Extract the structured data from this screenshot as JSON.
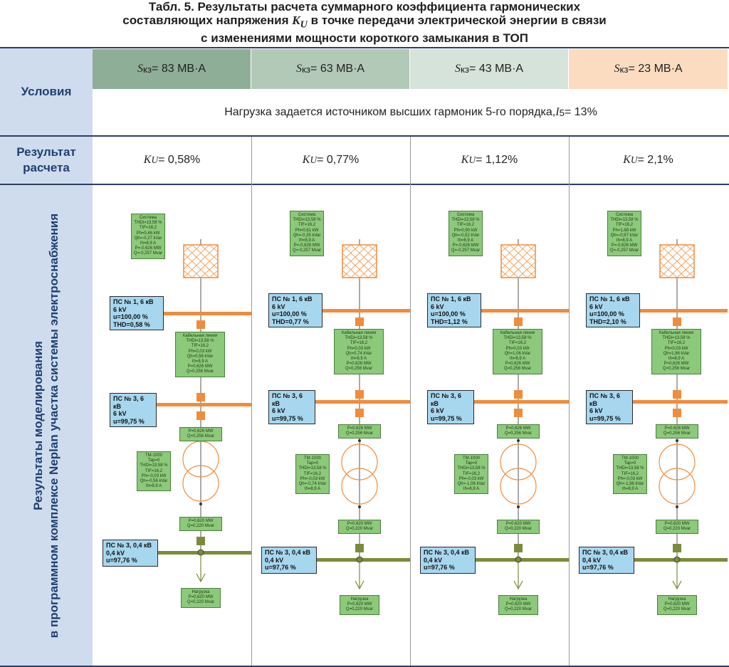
{
  "title": {
    "line1": "Табл. 5. Результаты расчета суммарного коэффициента гармонических",
    "line2_pre": "составляющих напряжения ",
    "line2_k": "K",
    "line2_sub": "U",
    "line2_post": " в точке передачи электрической энергии в связи",
    "line3": "с изменениями мощности короткого замыкания в ТОП"
  },
  "row_labels": {
    "conditions": "Условия",
    "result": "Результат расчета",
    "modeling_line1": "Результаты моделирования",
    "modeling_line2": "в программном комплексе Neplan участка системы электроснабжения"
  },
  "colors": {
    "header_bg": [
      "#8fae97",
      "#b3c9b8",
      "#d6e3da",
      "#fbdcc0"
    ],
    "left_band": "#cfdcee",
    "bus": "#f08c3c",
    "bus_lv": "#7a8c3a"
  },
  "condition_text": {
    "pre": "Нагрузка задается источником высших гармоник 5-го порядка, ",
    "i": "I",
    "sub": "5",
    "post": " = 13%"
  },
  "columns": [
    {
      "header": {
        "s": "S",
        "sub": "кз",
        "value": " = 83 МВ·А"
      },
      "result": {
        "k": "K",
        "sub": "U",
        "value": " = 0,58%"
      },
      "system": [
        "Система",
        "THDi=13,58 %",
        "TIF=16,2",
        "Ph=0,46 kW",
        "Qh=-0,27 kVar",
        "Ih=8,9 A",
        "P=-0,626 MW",
        "Q=-0,257 Mvar"
      ],
      "ps1": [
        "ПС № 1, 6 кВ",
        "6 kV",
        "u=100,00 %",
        "THD=0,58 %"
      ],
      "cable": [
        "Кабельная линия",
        "THDi=13,58 %",
        "TIF=16,2",
        "Ph=0,03 kW",
        "Qh=0,56 kVar",
        "Ih=8,9 A",
        "P=0,626 MW",
        "Q=0,256 Mvar"
      ],
      "ps3": [
        "ПС № 3, 6 кВ",
        "6 kV",
        "u=99,75 %"
      ],
      "pq1": [
        "P=0,626 MW",
        "Q=0,256 Mvar"
      ],
      "tm": [
        "ТМ-1000",
        "Tap=0",
        "THDi=13,58 %",
        "TIF=16,2",
        "Ph=-0,03 kW",
        "Qh=-0,56 kVar",
        "Ih=8,9 A"
      ],
      "pq2": [
        "P=0,620 MW",
        "Q=0,220 Mvar"
      ],
      "ps3lv": [
        "ПС № 3, 0,4 кВ",
        "0,4 kV",
        "u=97,76 %"
      ],
      "load": [
        "Нагрузка",
        "P=0,620 MW",
        "Q=0,220 Mvar"
      ]
    },
    {
      "header": {
        "s": "S",
        "sub": "кз",
        "value": " = 63 МВ·А"
      },
      "result": {
        "k": "K",
        "sub": "U",
        "value": " = 0,77%"
      },
      "system": [
        "Система",
        "THDi=13,58 %",
        "TIF=16,2",
        "Ph=0,61 kW",
        "Qh=-0,35 kVar",
        "Ih=8,9 A",
        "P=-0,626 MW",
        "Q=-0,257 Mvar"
      ],
      "ps1": [
        "ПС № 1, 6 кВ",
        "6 kV",
        "u=100,00 %",
        "THD=0,77 %"
      ],
      "cable": [
        "Кабельная линия",
        "THDi=13,58 %",
        "TIF=16,2",
        "Ph=0,03 kW",
        "Qh=0,74 kVar",
        "Ih=8,9 A",
        "P=0,626 MW",
        "Q=0,256 Mvar"
      ],
      "ps3": [
        "ПС № 3, 6 кВ",
        "6 kV",
        "u=99,75 %"
      ],
      "pq1": [
        "P=0,626 MW",
        "Q=0,256 Mvar"
      ],
      "tm": [
        "ТМ-1000",
        "Tap=0",
        "THDi=13,58 %",
        "TIF=16,2",
        "Ph=-0,03 kW",
        "Qh=-0,74 kVar",
        "Ih=8,9 A"
      ],
      "pq2": [
        "P=0,620 MW",
        "Q=0,220 Mvar"
      ],
      "ps3lv": [
        "ПС № 3, 0,4 кВ",
        "0,4 kV",
        "u=97,76 %"
      ],
      "load": [
        "Нагрузка",
        "P=0,620 MW",
        "Q=0,220 Mvar"
      ]
    },
    {
      "header": {
        "s": "S",
        "sub": "кз",
        "value": " = 43 МВ·А"
      },
      "result": {
        "k": "K",
        "sub": "U",
        "value": " = 1,12%"
      },
      "system": [
        "Система",
        "THDi=13,58 %",
        "TIF=16,2",
        "Ph=0,90 kW",
        "Qh=-0,52 kVar",
        "Ih=8,9 A",
        "P=-0,626 MW",
        "Q=-0,257 Mvar"
      ],
      "ps1": [
        "ПС № 1, 6 кВ",
        "6 kV",
        "u=100,00 %",
        "THD=1,12 %"
      ],
      "cable": [
        "Кабельная линия",
        "THDi=13,58 %",
        "TIF=16,2",
        "Ph=0,03 kW",
        "Qh=1,06 kVar",
        "Ih=8,9 A",
        "P=0,626 MW",
        "Q=0,256 Mvar"
      ],
      "ps3": [
        "ПС № 3, 6 кВ",
        "6 kV",
        "u=99,75 %"
      ],
      "pq1": [
        "P=0,626 MW",
        "Q=0,256 Mvar"
      ],
      "tm": [
        "ТМ-1000",
        "Tap=0",
        "THDi=13,58 %",
        "TIF=16,2",
        "Ph=-0,03 kW",
        "Qh=-1,06 kVar",
        "Ih=8,9 A"
      ],
      "pq2": [
        "P=0,620 MW",
        "Q=0,220 Mvar"
      ],
      "ps3lv": [
        "ПС № 3, 0,4 кВ",
        "0,4 kV",
        "u=97,76 %"
      ],
      "load": [
        "Нагрузка",
        "P=0,620 MW",
        "Q=0,220 Mvar"
      ]
    },
    {
      "header": {
        "s": "S",
        "sub": "кз",
        "value": " = 23 МВ·А"
      },
      "result": {
        "k": "K",
        "sub": "U",
        "value": " = 2,1%"
      },
      "system": [
        "Система",
        "THDi=13,58 %",
        "TIF=16,2",
        "Ph=1,68 kW",
        "Qh=-0,97 kVar",
        "Ih=8,9 A",
        "P=-0,626 MW",
        "Q=-0,257 Mvar"
      ],
      "ps1": [
        "ПС № 1, 6 кВ",
        "6 kV",
        "u=100,00 %",
        "THD=2,10 %"
      ],
      "cable": [
        "Кабельная линия",
        "THDi=13,58 %",
        "TIF=16,2",
        "Ph=0,03 kW",
        "Qh=1,96 kVar",
        "Ih=8,9 A",
        "P=0,626 MW",
        "Q=0,256 Mvar"
      ],
      "ps3": [
        "ПС № 3, 6 кВ",
        "6 kV",
        "u=99,75 %"
      ],
      "pq1": [
        "P=0,626 MW",
        "Q=0,256 Mvar"
      ],
      "tm": [
        "ТМ-1000",
        "Tap=0",
        "THDi=13,58 %",
        "TIF=16,2",
        "Ph=-0,03 kW",
        "Qh=-1,96 kVar",
        "Ih=8,9 A"
      ],
      "pq2": [
        "P=0,620 MW",
        "Q=0,220 Mvar"
      ],
      "ps3lv": [
        "ПС № 3, 0,4 кВ",
        "0,4 kV",
        "u=97,76 %"
      ],
      "load": [
        "Нагрузка",
        "P=0,620 MW",
        "Q=0,220 Mvar"
      ]
    }
  ]
}
